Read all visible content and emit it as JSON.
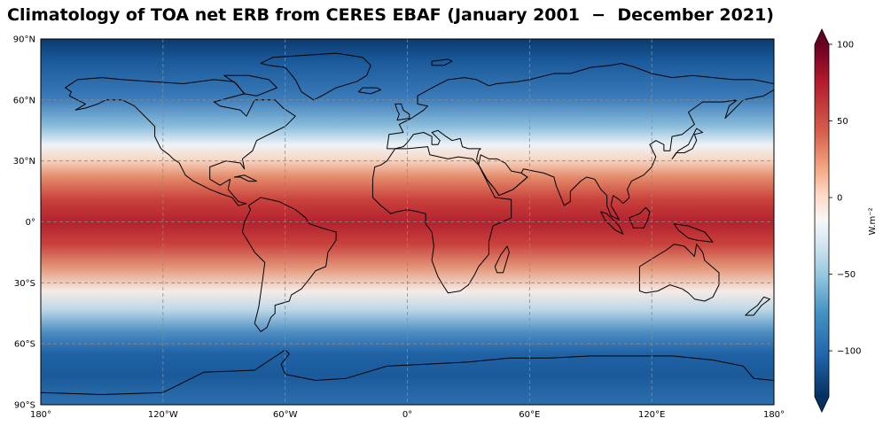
{
  "title": "Climatology of TOA net ERB from CERES EBAF (January 2001  −  December 2021)",
  "map": {
    "projection": "PlateCarree",
    "lon_range": [
      -180,
      180
    ],
    "lat_range": [
      -90,
      90
    ],
    "gridlines": "dashed grey",
    "coastlines": "black",
    "x_ticks": [
      {
        "lon": -180,
        "label": "180°"
      },
      {
        "lon": -120,
        "label": "120°W"
      },
      {
        "lon": -60,
        "label": "60°W"
      },
      {
        "lon": 0,
        "label": "0°"
      },
      {
        "lon": 60,
        "label": "60°E"
      },
      {
        "lon": 120,
        "label": "120°E"
      },
      {
        "lon": 180,
        "label": "180°"
      }
    ],
    "y_ticks": [
      {
        "lat": 90,
        "label": "90°N"
      },
      {
        "lat": 60,
        "label": "60°N"
      },
      {
        "lat": 30,
        "label": "30°N"
      },
      {
        "lat": 0,
        "label": "0°"
      },
      {
        "lat": -30,
        "label": "30°S"
      },
      {
        "lat": -60,
        "label": "60°S"
      },
      {
        "lat": -90,
        "label": "90°S"
      }
    ]
  },
  "colorbar": {
    "label": "W.m⁻²",
    "colormap": "RdBu_r",
    "range": [
      -130,
      100
    ],
    "extend": "both",
    "ticks": [
      {
        "value": 100,
        "label": "100"
      },
      {
        "value": 50,
        "label": "50"
      },
      {
        "value": 0,
        "label": "0"
      },
      {
        "value": -50,
        "label": "−50"
      },
      {
        "value": -100,
        "label": "−100"
      }
    ]
  },
  "colors": {
    "deep_red": "#67001f",
    "red": "#b2182b",
    "light_red": "#f4a582",
    "white": "#f7f7f7",
    "light_blue": "#92c5de",
    "blue": "#2166ac",
    "deep_blue": "#053061"
  }
}
